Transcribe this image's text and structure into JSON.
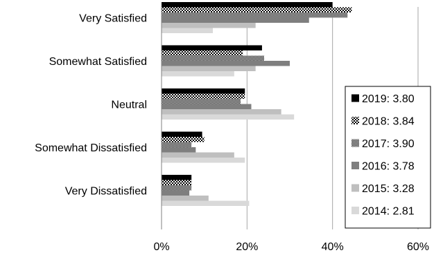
{
  "chart_data": {
    "type": "bar",
    "orientation": "horizontal",
    "categories": [
      "Very Satisfied",
      "Somewhat Satisfied",
      "Neutral",
      "Somewhat Dissatisfied",
      "Very Dissatisfied"
    ],
    "series": [
      {
        "name": "2019: 3.80",
        "values": [
          40,
          23.5,
          19.5,
          9.5,
          7
        ],
        "color": "#000000",
        "pattern": "solid"
      },
      {
        "name": "2018: 3.84",
        "values": [
          44.5,
          19,
          19.5,
          10,
          7
        ],
        "color": "#000000",
        "pattern": "checker-coarse"
      },
      {
        "name": "2017: 3.90",
        "values": [
          43.5,
          24,
          18.5,
          7,
          7
        ],
        "color": "#000000",
        "pattern": "checker-fine"
      },
      {
        "name": "2016: 3.78",
        "values": [
          34.5,
          30,
          21,
          8,
          6.5
        ],
        "color": "#7f7f7f",
        "pattern": "solid"
      },
      {
        "name": "2015: 3.28",
        "values": [
          22,
          22,
          28,
          17,
          11
        ],
        "color": "#bfbfbf",
        "pattern": "solid"
      },
      {
        "name": "2014: 2.81",
        "values": [
          12,
          17,
          31,
          19.5,
          20.5
        ],
        "color": "#d9d9d9",
        "pattern": "solid"
      }
    ],
    "xlim": [
      0,
      60
    ],
    "x_ticks": [
      "0%",
      "20%",
      "40%",
      "60%"
    ],
    "x_tick_values": [
      0,
      20,
      40,
      60
    ],
    "grid": "vertical",
    "legend_position": "right",
    "title": "",
    "xlabel": "",
    "ylabel": ""
  }
}
